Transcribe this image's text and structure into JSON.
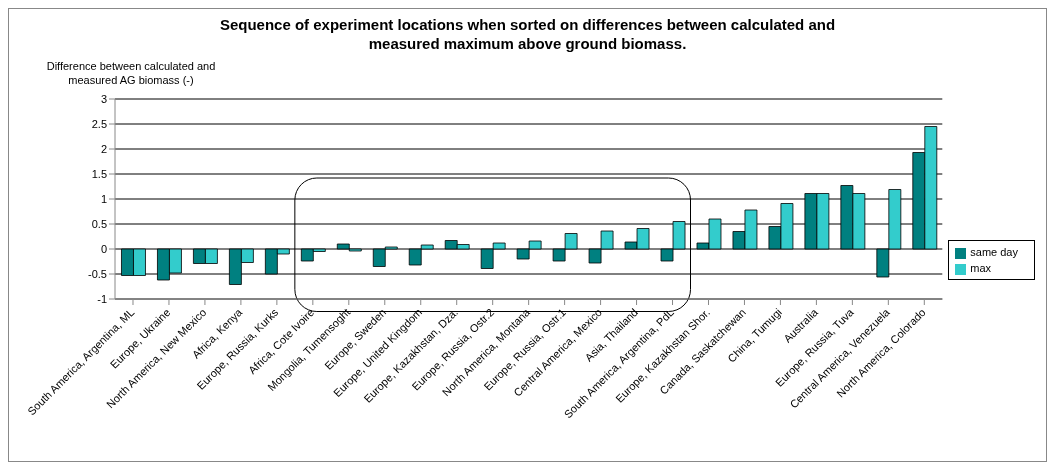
{
  "chart_data": {
    "type": "bar",
    "title": "Sequence of experiment locations when sorted on differences between calculated and measured maximum above ground biomass.",
    "ylabel": "Difference between calculated and measured AG biomass  (-)",
    "categories": [
      "South America, Argentina, ML",
      "Europe, Ukraine",
      "North America, New Mexico",
      "Africa, Kenya",
      "Europe, Russia, Kurks",
      "Africa, Cote Ivoire",
      "Mongolia, Tumensoght",
      "Europe, Sweden",
      "Europe, United Kingdom",
      "Europe, Kazakhstan, Dza.",
      "Europe, Russia, Ostr.2",
      "North America, Montana",
      "Europe, Russia, Ostr.1",
      "Central America, Mexico",
      "Asia, Thailand",
      "South America, Argentina, PdL",
      "Europe, Kazakhstan Shor.",
      "Canada, Saskatchewan",
      "China, Tumugi",
      "Australia",
      "Europe, Russia, Tuva",
      "Central America, Venezuela",
      "North America, Colorado"
    ],
    "series": [
      {
        "name": "same day",
        "color": "#008080",
        "values": [
          -0.53,
          -0.62,
          -0.29,
          -0.71,
          -0.5,
          -0.24,
          0.1,
          -0.35,
          -0.32,
          0.17,
          -0.39,
          -0.2,
          -0.24,
          -0.28,
          0.14,
          -0.24,
          0.12,
          0.35,
          0.45,
          1.11,
          1.27,
          -0.56,
          1.93
        ]
      },
      {
        "name": "max",
        "color": "#33cccc",
        "values": [
          -0.53,
          -0.48,
          -0.29,
          -0.27,
          -0.1,
          -0.05,
          -0.04,
          0.04,
          0.08,
          0.09,
          0.12,
          0.16,
          0.31,
          0.36,
          0.41,
          0.55,
          0.6,
          0.78,
          0.91,
          1.11,
          1.11,
          1.19,
          2.45
        ]
      }
    ],
    "ylim": [
      -1,
      3
    ],
    "yticks": [
      -1,
      -0.5,
      0,
      0.5,
      1,
      1.5,
      2,
      2.5,
      3
    ],
    "grid": "y",
    "legend": "right"
  }
}
